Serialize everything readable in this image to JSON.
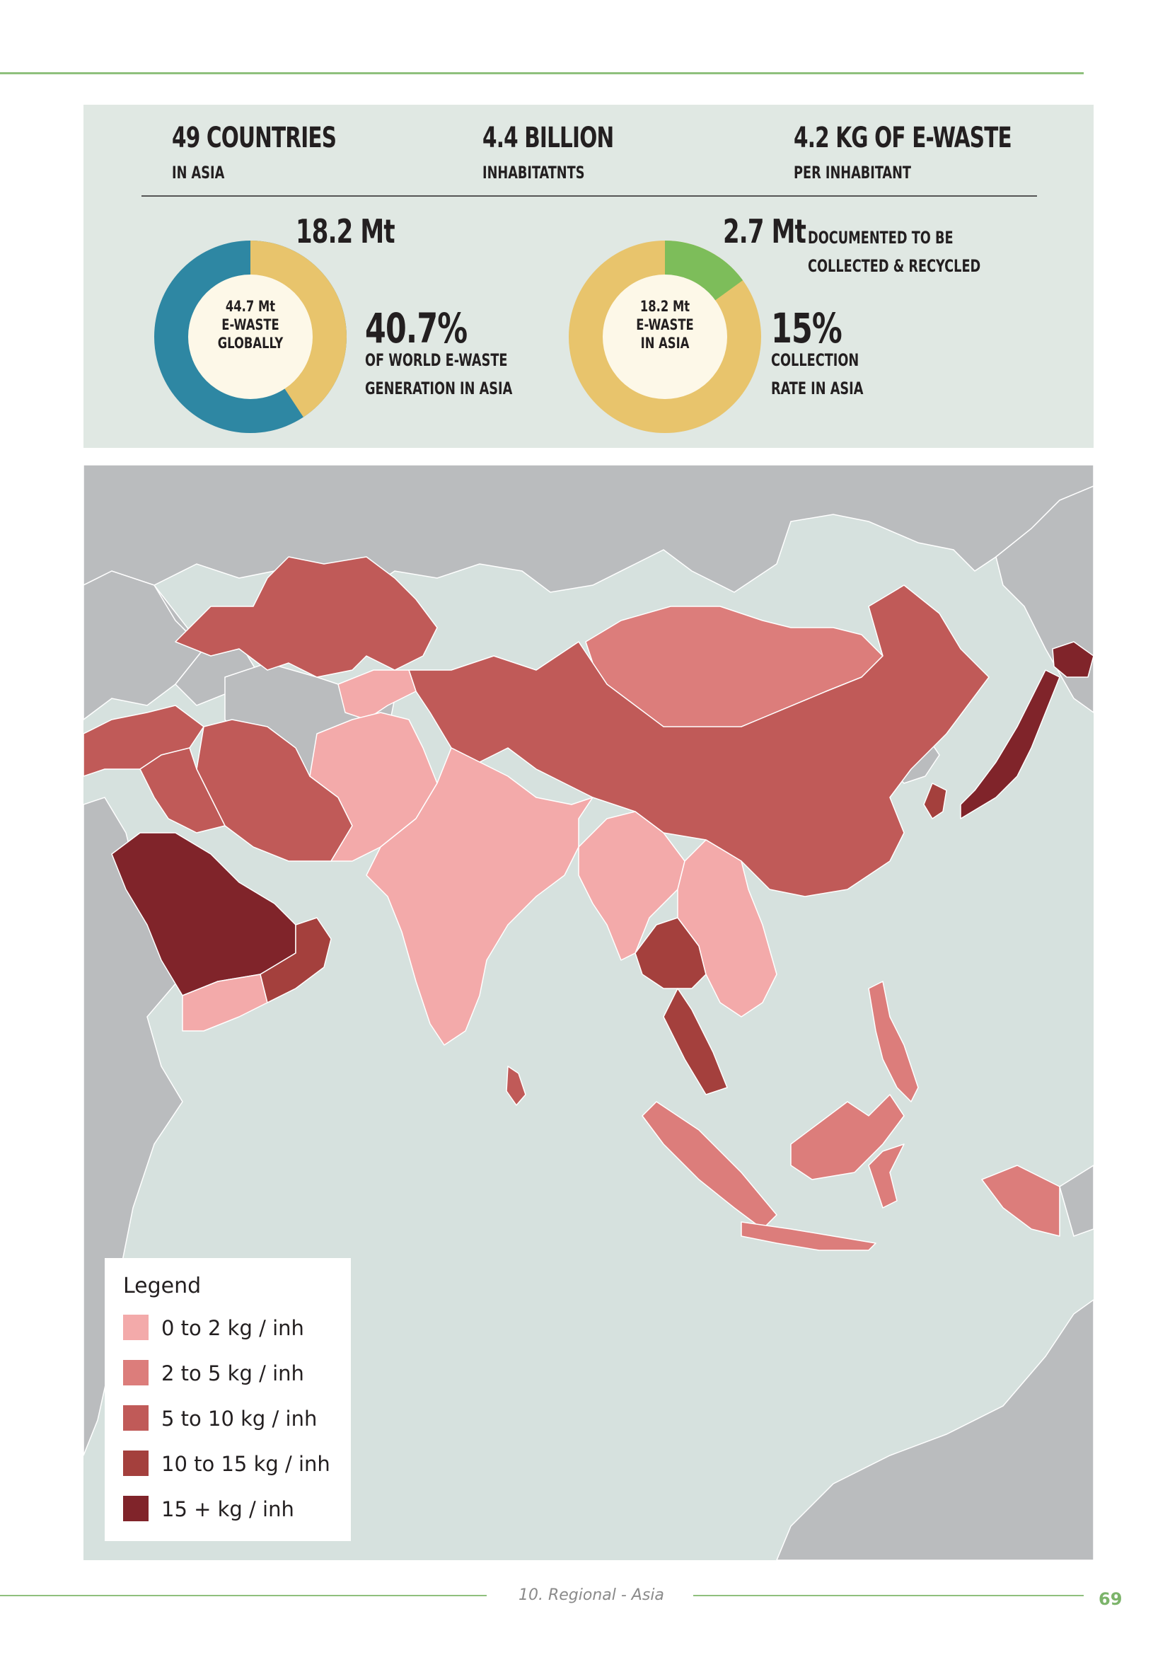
{
  "header": {
    "stat1": {
      "value": "49 COUNTRIES",
      "caption": "IN ASIA"
    },
    "stat2": {
      "value": "4.4 BILLION",
      "caption": "INHABITATNTS"
    },
    "stat3": {
      "value": "4.2 KG OF E-WASTE",
      "caption": "PER INHABITANT"
    }
  },
  "donut_global": {
    "top_label": "18.2 Mt",
    "center_line1": "44.7 Mt",
    "center_line2": "E-WASTE",
    "center_line3": "GLOBALLY",
    "share_percent": 40.7,
    "percent_label": "40.7%",
    "caption_line1": "OF WORLD E-WASTE",
    "caption_line2": "GENERATION IN ASIA",
    "colors": {
      "asia": "#e8c46c",
      "rest": "#2e87a3",
      "center": "#fdf8e8"
    }
  },
  "donut_asia": {
    "top_value": "2.7 Mt",
    "top_caption_line1": "DOCUMENTED TO BE",
    "top_caption_line2": "COLLECTED & RECYCLED",
    "center_line1": "18.2 Mt",
    "center_line2": "E-WASTE",
    "center_line3": "IN ASIA",
    "collected_percent": 15,
    "percent_label": "15%",
    "caption_line1": "COLLECTION",
    "caption_line2": "RATE IN ASIA",
    "colors": {
      "collected": "#7dbd5a",
      "rest": "#e8c46c",
      "center": "#fdf8e8"
    }
  },
  "map": {
    "colors": {
      "sea": "#d6e1de",
      "other_land": "#babcbe",
      "0_2": "#f3aaaa",
      "2_5": "#dc7d7b",
      "5_10": "#c05a58",
      "10_15": "#a4403d",
      "15_plus": "#80242a"
    },
    "legend": {
      "title": "Legend",
      "items": [
        {
          "label": "0 to 2 kg / inh",
          "color": "#f3aaaa"
        },
        {
          "label": "2 to 5 kg / inh",
          "color": "#dc7d7b"
        },
        {
          "label": "5 to 10 kg / inh",
          "color": "#c05a58"
        },
        {
          "label": "10 to 15 kg / inh",
          "color": "#a4403d"
        },
        {
          "label": "15 + kg / inh",
          "color": "#80242a"
        }
      ]
    }
  },
  "footer": {
    "section": "10. Regional - Asia",
    "page_number": "69"
  }
}
